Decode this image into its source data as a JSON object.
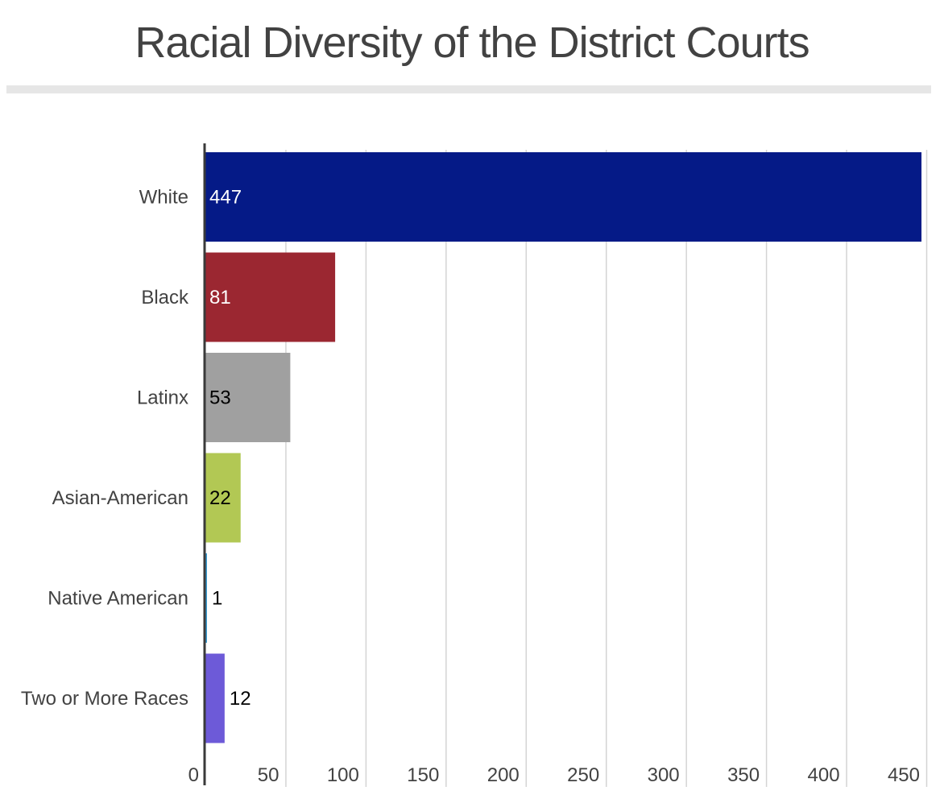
{
  "chart_data": {
    "type": "bar",
    "orientation": "horizontal",
    "title": "Racial Diversity of the District Courts",
    "xlabel": "",
    "ylabel": "",
    "categories": [
      "White",
      "Black",
      "Latinx",
      "Asian-American",
      "Native American",
      "Two or More Races"
    ],
    "values": [
      447,
      81,
      53,
      22,
      1,
      12
    ],
    "data_labels": [
      "447",
      "81",
      "53",
      "22",
      "1",
      "12"
    ],
    "colors": [
      "#051a87",
      "#9b2731",
      "#a0a0a0",
      "#b2c854",
      "#3a9bd0",
      "#6d5ad8"
    ],
    "label_colors": [
      "#ffffff",
      "#ffffff",
      "#000000",
      "#000000",
      "#000000",
      "#000000"
    ],
    "xlim": [
      0,
      450
    ],
    "x_ticks": [
      0,
      50,
      100,
      150,
      200,
      250,
      300,
      350,
      400,
      450
    ],
    "x_tick_labels": [
      "0",
      "50",
      "100",
      "150",
      "200",
      "250",
      "300",
      "350",
      "400",
      "450"
    ],
    "grid": "vertical",
    "legend": "none"
  }
}
